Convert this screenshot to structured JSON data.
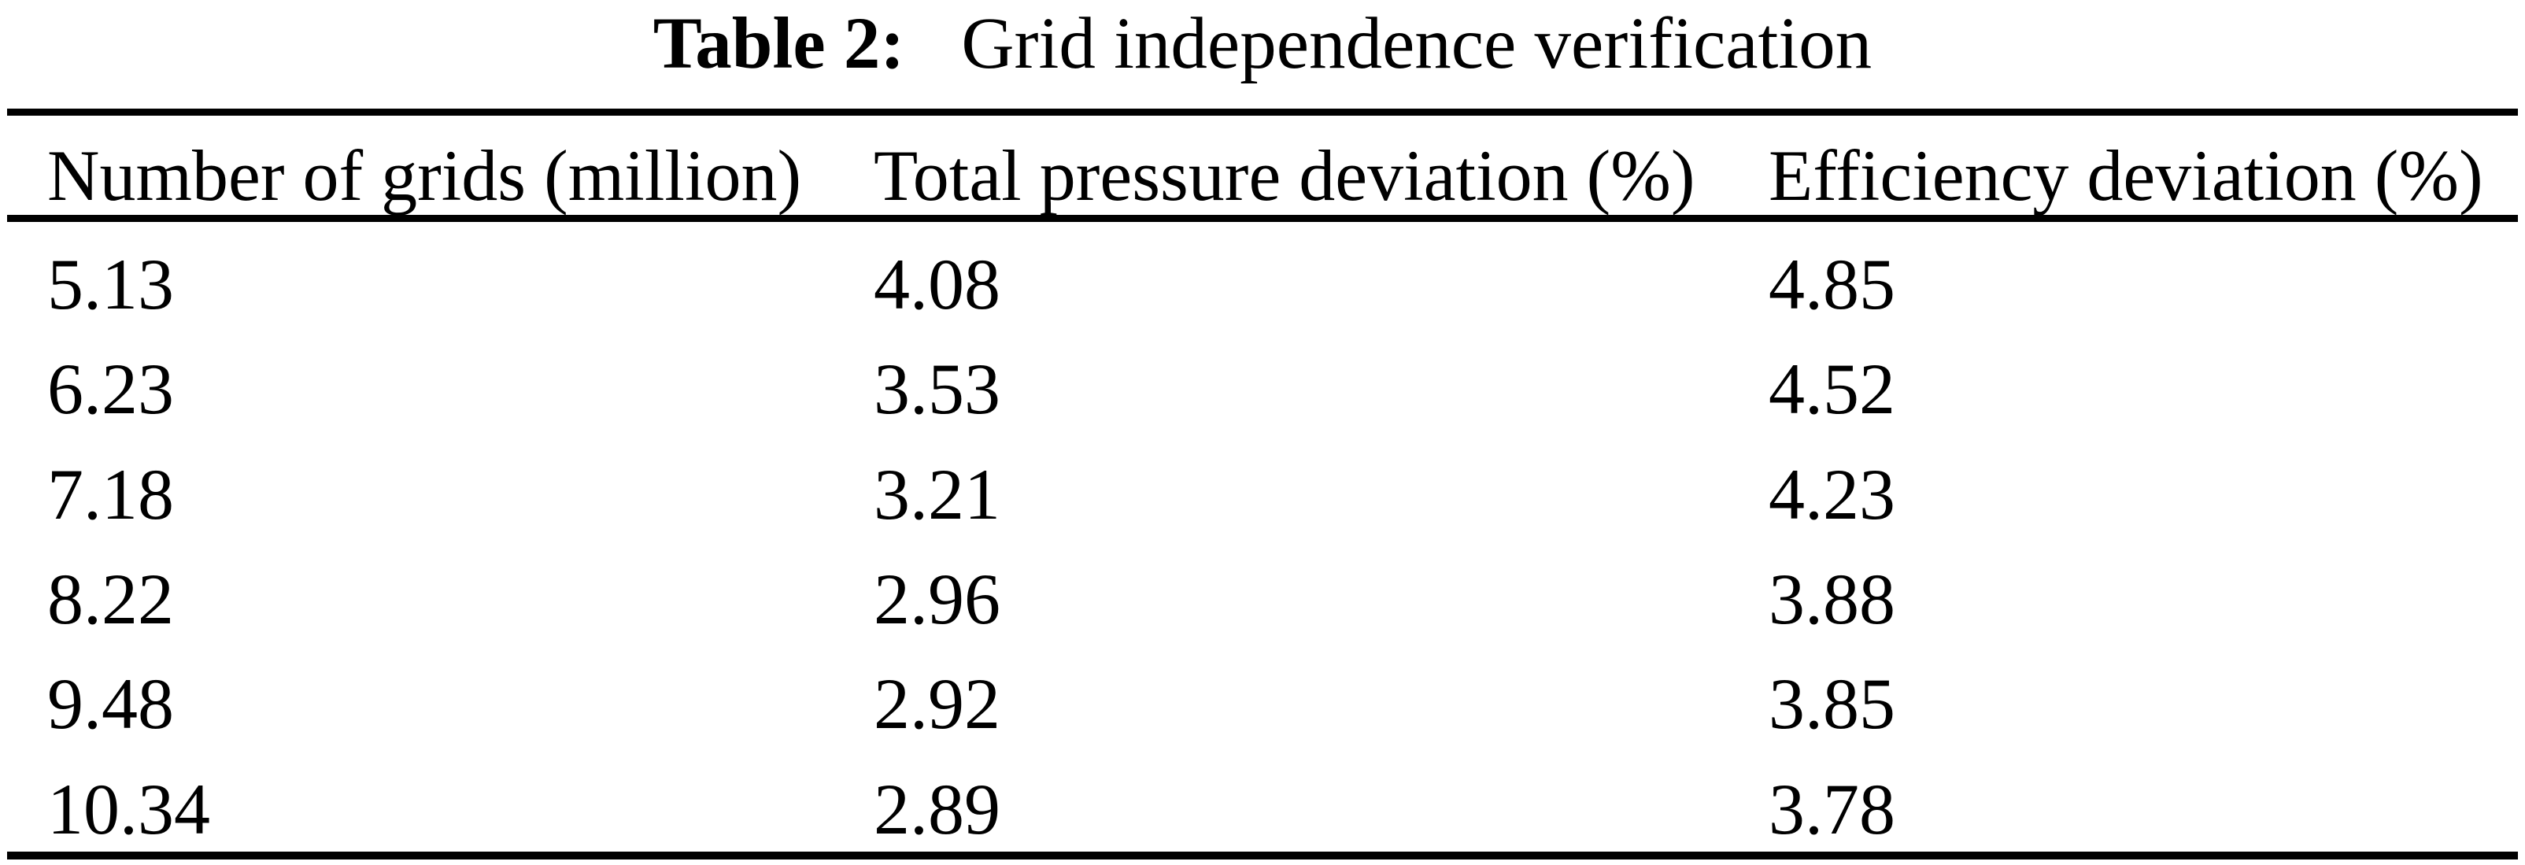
{
  "caption": {
    "label": "Table 2:",
    "text": "Grid independence verification"
  },
  "table": {
    "columns": [
      "Number of grids (million)",
      "Total pressure deviation (%)",
      "Efficiency deviation (%)"
    ],
    "rows": [
      [
        "5.13",
        "4.08",
        "4.85"
      ],
      [
        "6.23",
        "3.53",
        "4.52"
      ],
      [
        "7.18",
        "3.21",
        "4.23"
      ],
      [
        "8.22",
        "2.96",
        "3.88"
      ],
      [
        "9.48",
        "2.92",
        "3.85"
      ],
      [
        "10.34",
        "2.89",
        "3.78"
      ]
    ]
  },
  "colors": {
    "text": "#000000",
    "background": "#ffffff",
    "rule": "#000000"
  },
  "chart_data": {
    "type": "table",
    "title": "Table 2: Grid independence verification",
    "columns": [
      "Number of grids (million)",
      "Total pressure deviation (%)",
      "Efficiency deviation (%)"
    ],
    "rows": [
      [
        5.13,
        4.08,
        4.85
      ],
      [
        6.23,
        3.53,
        4.52
      ],
      [
        7.18,
        3.21,
        4.23
      ],
      [
        8.22,
        2.96,
        3.88
      ],
      [
        9.48,
        2.92,
        3.85
      ],
      [
        10.34,
        2.89,
        3.78
      ]
    ]
  }
}
